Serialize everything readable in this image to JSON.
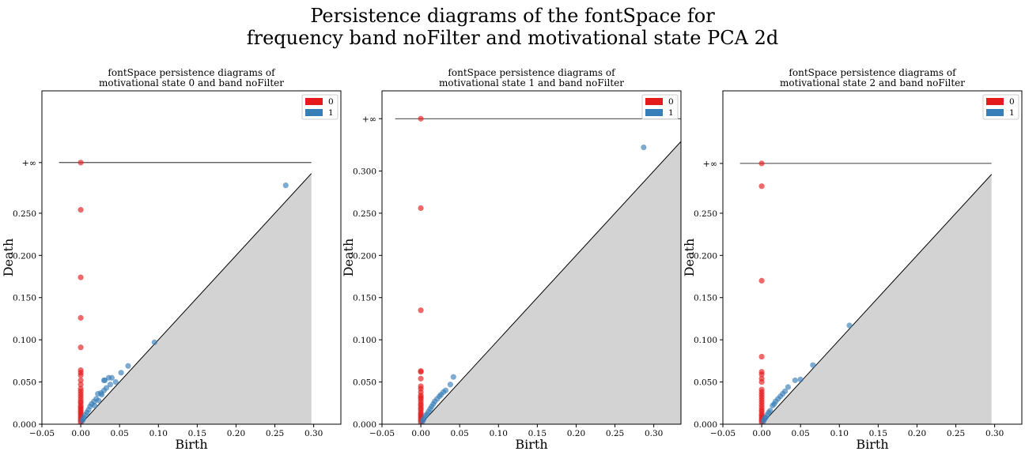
{
  "figure": {
    "title_line1": "Persistence diagrams of the fontSpace for",
    "title_line2": "frequency band noFilter and motivational state PCA 2d"
  },
  "colors": {
    "h0": "#e41a1c",
    "h1": "#377eb8",
    "diagonal_fill": "#d3d3d3"
  },
  "chart_data": [
    {
      "type": "scatter",
      "title_line1": "fontSpace persistence diagrams of",
      "title_line2": "motivational state 0 and band noFilter",
      "xlabel": "Birth",
      "ylabel": "Death",
      "xlim": [
        -0.05,
        0.335
      ],
      "ylim": [
        0,
        0.395
      ],
      "xticks": [
        "−0.05",
        "0.00",
        "0.05",
        "0.10",
        "0.15",
        "0.20",
        "0.25",
        "0.30"
      ],
      "yticks": [
        "0.000",
        "0.050",
        "0.100",
        "0.150",
        "0.200",
        "0.250"
      ],
      "inf_label": "+∞",
      "inf_y": 0.31,
      "inf_line_x": [
        -0.028,
        0.297
      ],
      "diag_end": 0.297,
      "legend": [
        "0",
        "1"
      ],
      "legend_position": "top-right",
      "series": [
        {
          "name": "0",
          "points": [
            [
              0,
              0.31
            ],
            [
              0,
              0.254
            ],
            [
              0,
              0.174
            ],
            [
              0,
              0.126
            ],
            [
              0,
              0.091
            ],
            [
              0,
              0.064
            ],
            [
              0,
              0.061
            ],
            [
              0,
              0.058
            ],
            [
              0,
              0.052
            ],
            [
              0,
              0.047
            ],
            [
              0,
              0.042
            ],
            [
              0,
              0.039
            ],
            [
              0,
              0.036
            ],
            [
              0,
              0.033
            ],
            [
              0,
              0.03
            ],
            [
              0,
              0.027
            ],
            [
              0,
              0.025
            ],
            [
              0,
              0.022
            ],
            [
              0,
              0.02
            ],
            [
              0,
              0.018
            ],
            [
              0,
              0.016
            ],
            [
              0,
              0.014
            ],
            [
              0,
              0.012
            ],
            [
              0,
              0.01
            ],
            [
              0,
              0.008
            ],
            [
              0,
              0.006
            ],
            [
              0,
              0.004
            ],
            [
              0,
              0.002
            ]
          ]
        },
        {
          "name": "1",
          "points": [
            [
              0.264,
              0.283
            ],
            [
              0.095,
              0.097
            ],
            [
              0.061,
              0.069
            ],
            [
              0.052,
              0.061
            ],
            [
              0.04,
              0.055
            ],
            [
              0.036,
              0.055
            ],
            [
              0.031,
              0.052
            ],
            [
              0.03,
              0.052
            ],
            [
              0.038,
              0.047
            ],
            [
              0.033,
              0.043
            ],
            [
              0.03,
              0.04
            ],
            [
              0.026,
              0.037
            ],
            [
              0.022,
              0.036
            ],
            [
              0.027,
              0.035
            ],
            [
              0.02,
              0.03
            ],
            [
              0.017,
              0.027
            ],
            [
              0.014,
              0.024
            ],
            [
              0.012,
              0.021
            ],
            [
              0.01,
              0.017
            ],
            [
              0.008,
              0.014
            ],
            [
              0.006,
              0.011
            ],
            [
              0.004,
              0.008
            ],
            [
              0.003,
              0.006
            ],
            [
              0.002,
              0.004
            ],
            [
              0.045,
              0.05
            ],
            [
              0.023,
              0.028
            ],
            [
              0.018,
              0.022
            ]
          ]
        }
      ]
    },
    {
      "type": "scatter",
      "title_line1": "fontSpace persistence diagrams of",
      "title_line2": "motivational state 1 and band noFilter",
      "xlabel": "Birth",
      "ylabel": "Death",
      "xlim": [
        -0.05,
        0.335
      ],
      "ylim": [
        0,
        0.395
      ],
      "xticks": [
        "−0.05",
        "0.00",
        "0.05",
        "0.10",
        "0.15",
        "0.20",
        "0.25",
        "0.30"
      ],
      "yticks": [
        "0.000",
        "0.050",
        "0.100",
        "0.150",
        "0.200",
        "0.250",
        "0.300"
      ],
      "inf_label": "+∞",
      "inf_y": 0.362,
      "inf_line_x": [
        -0.033,
        0.335
      ],
      "diag_end": 0.335,
      "legend": [
        "0",
        "1"
      ],
      "legend_position": "top-right",
      "series": [
        {
          "name": "0",
          "points": [
            [
              0,
              0.362
            ],
            [
              0,
              0.256
            ],
            [
              0,
              0.135
            ],
            [
              0,
              0.063
            ],
            [
              0,
              0.062
            ],
            [
              0,
              0.054
            ],
            [
              0,
              0.045
            ],
            [
              0,
              0.042
            ],
            [
              0,
              0.038
            ],
            [
              0,
              0.034
            ],
            [
              0,
              0.032
            ],
            [
              0,
              0.03
            ],
            [
              0,
              0.027
            ],
            [
              0,
              0.024
            ],
            [
              0,
              0.022
            ],
            [
              0,
              0.019
            ],
            [
              0,
              0.017
            ],
            [
              0,
              0.014
            ],
            [
              0,
              0.012
            ],
            [
              0,
              0.01
            ],
            [
              0,
              0.008
            ],
            [
              0,
              0.006
            ],
            [
              0,
              0.004
            ],
            [
              0,
              0.002
            ]
          ]
        },
        {
          "name": "1",
          "points": [
            [
              0.287,
              0.328
            ],
            [
              0.042,
              0.056
            ],
            [
              0.038,
              0.047
            ],
            [
              0.032,
              0.04
            ],
            [
              0.029,
              0.038
            ],
            [
              0.026,
              0.035
            ],
            [
              0.024,
              0.033
            ],
            [
              0.021,
              0.03
            ],
            [
              0.018,
              0.027
            ],
            [
              0.016,
              0.024
            ],
            [
              0.014,
              0.021
            ],
            [
              0.012,
              0.018
            ],
            [
              0.01,
              0.015
            ],
            [
              0.008,
              0.012
            ],
            [
              0.006,
              0.01
            ],
            [
              0.004,
              0.007
            ],
            [
              0.003,
              0.005
            ],
            [
              0.002,
              0.003
            ]
          ]
        }
      ]
    },
    {
      "type": "scatter",
      "title_line1": "fontSpace persistence diagrams of",
      "title_line2": "motivational state 2 and band noFilter",
      "xlabel": "Birth",
      "ylabel": "Death",
      "xlim": [
        -0.05,
        0.335
      ],
      "ylim": [
        0,
        0.395
      ],
      "xticks": [
        "−0.05",
        "0.00",
        "0.05",
        "0.10",
        "0.15",
        "0.20",
        "0.25",
        "0.30"
      ],
      "yticks": [
        "0.000",
        "0.050",
        "0.100",
        "0.150",
        "0.200",
        "0.250"
      ],
      "inf_label": "+∞",
      "inf_y": 0.309,
      "inf_line_x": [
        -0.028,
        0.296
      ],
      "diag_end": 0.296,
      "legend": [
        "0",
        "1"
      ],
      "legend_position": "top-right",
      "series": [
        {
          "name": "0",
          "points": [
            [
              0,
              0.309
            ],
            [
              0,
              0.282
            ],
            [
              0,
              0.17
            ],
            [
              0,
              0.08
            ],
            [
              0,
              0.062
            ],
            [
              0,
              0.059
            ],
            [
              0,
              0.054
            ],
            [
              0,
              0.05
            ],
            [
              0,
              0.041
            ],
            [
              0,
              0.038
            ],
            [
              0,
              0.035
            ],
            [
              0,
              0.032
            ],
            [
              0,
              0.029
            ],
            [
              0,
              0.026
            ],
            [
              0,
              0.023
            ],
            [
              0,
              0.02
            ],
            [
              0,
              0.017
            ],
            [
              0,
              0.015
            ],
            [
              0,
              0.012
            ],
            [
              0,
              0.01
            ],
            [
              0,
              0.008
            ],
            [
              0,
              0.006
            ],
            [
              0,
              0.004
            ],
            [
              0,
              0.002
            ]
          ]
        },
        {
          "name": "1",
          "points": [
            [
              0.113,
              0.117
            ],
            [
              0.066,
              0.07
            ],
            [
              0.05,
              0.053
            ],
            [
              0.043,
              0.052
            ],
            [
              0.034,
              0.044
            ],
            [
              0.03,
              0.039
            ],
            [
              0.027,
              0.036
            ],
            [
              0.024,
              0.033
            ],
            [
              0.021,
              0.03
            ],
            [
              0.018,
              0.027
            ],
            [
              0.016,
              0.024
            ],
            [
              0.014,
              0.022
            ],
            [
              0.011,
              0.016
            ],
            [
              0.009,
              0.014
            ],
            [
              0.007,
              0.011
            ],
            [
              0.005,
              0.008
            ],
            [
              0.004,
              0.007
            ],
            [
              0.003,
              0.005
            ],
            [
              0.002,
              0.003
            ]
          ]
        }
      ]
    }
  ]
}
